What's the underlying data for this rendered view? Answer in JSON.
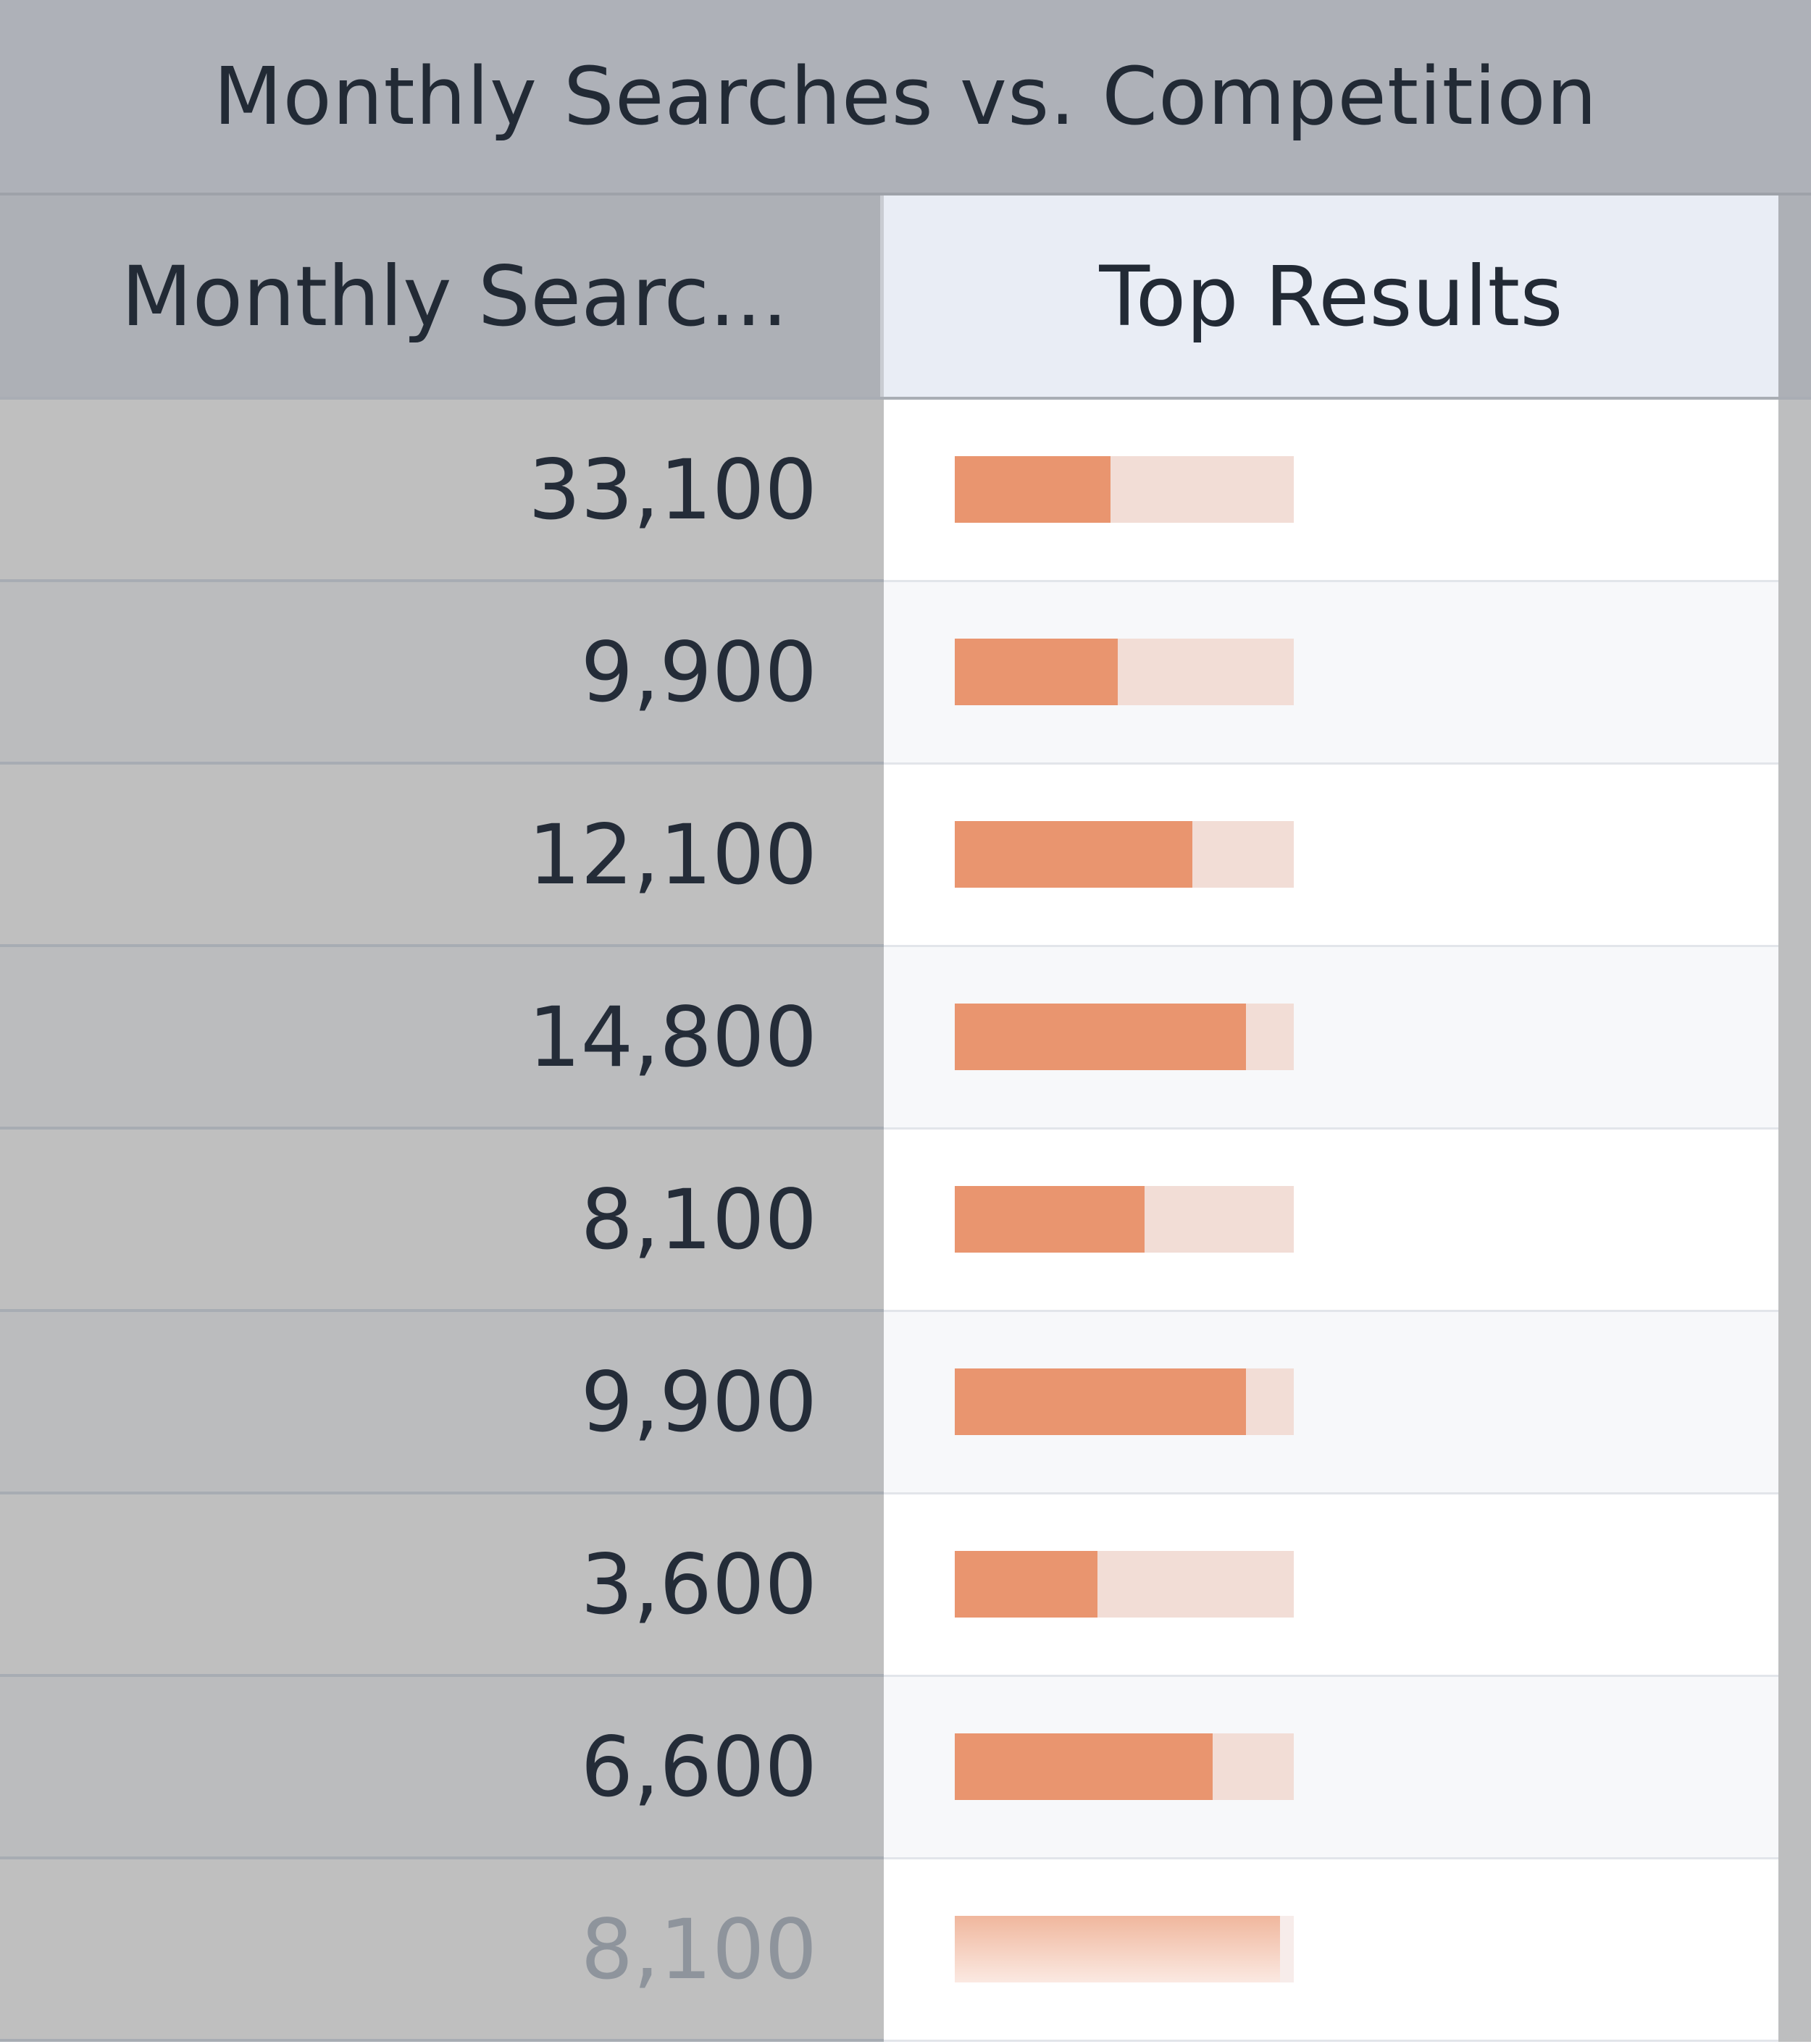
{
  "title": "Monthly Searches vs. Competition",
  "columns": {
    "searches": "Monthly Searc...",
    "results": "Top Results"
  },
  "accent_color": "#e9956f",
  "track_color": "#f2ddd6",
  "rows": [
    {
      "searches": "33,100",
      "competition": 0.46
    },
    {
      "searches": "9,900",
      "competition": 0.48
    },
    {
      "searches": "12,100",
      "competition": 0.7
    },
    {
      "searches": "14,800",
      "competition": 0.86
    },
    {
      "searches": "8,100",
      "competition": 0.56
    },
    {
      "searches": "9,900",
      "competition": 0.86
    },
    {
      "searches": "3,600",
      "competition": 0.42
    },
    {
      "searches": "6,600",
      "competition": 0.76
    },
    {
      "searches": "8,100",
      "competition": 0.96
    }
  ]
}
